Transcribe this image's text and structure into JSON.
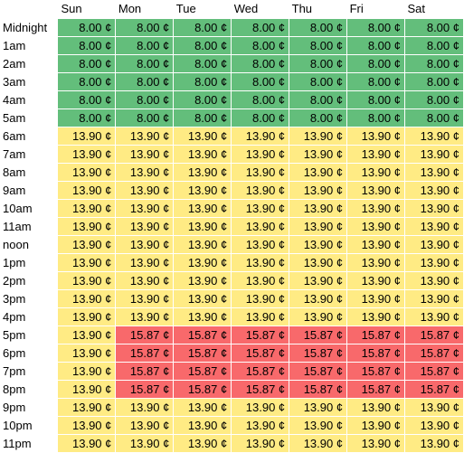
{
  "colors": {
    "off_peak": "#63be7b",
    "mid_peak": "#ffeb84",
    "on_peak": "#f8696b"
  },
  "days": [
    "Sun",
    "Mon",
    "Tue",
    "Wed",
    "Thu",
    "Fri",
    "Sat"
  ],
  "rows": [
    {
      "hour": "Midnight",
      "values": [
        "8.00 ¢",
        "8.00 ¢",
        "8.00 ¢",
        "8.00 ¢",
        "8.00 ¢",
        "8.00 ¢",
        "8.00 ¢"
      ],
      "tiers": [
        "off",
        "off",
        "off",
        "off",
        "off",
        "off",
        "off"
      ]
    },
    {
      "hour": "1am",
      "values": [
        "8.00 ¢",
        "8.00 ¢",
        "8.00 ¢",
        "8.00 ¢",
        "8.00 ¢",
        "8.00 ¢",
        "8.00 ¢"
      ],
      "tiers": [
        "off",
        "off",
        "off",
        "off",
        "off",
        "off",
        "off"
      ]
    },
    {
      "hour": "2am",
      "values": [
        "8.00 ¢",
        "8.00 ¢",
        "8.00 ¢",
        "8.00 ¢",
        "8.00 ¢",
        "8.00 ¢",
        "8.00 ¢"
      ],
      "tiers": [
        "off",
        "off",
        "off",
        "off",
        "off",
        "off",
        "off"
      ]
    },
    {
      "hour": "3am",
      "values": [
        "8.00 ¢",
        "8.00 ¢",
        "8.00 ¢",
        "8.00 ¢",
        "8.00 ¢",
        "8.00 ¢",
        "8.00 ¢"
      ],
      "tiers": [
        "off",
        "off",
        "off",
        "off",
        "off",
        "off",
        "off"
      ]
    },
    {
      "hour": "4am",
      "values": [
        "8.00 ¢",
        "8.00 ¢",
        "8.00 ¢",
        "8.00 ¢",
        "8.00 ¢",
        "8.00 ¢",
        "8.00 ¢"
      ],
      "tiers": [
        "off",
        "off",
        "off",
        "off",
        "off",
        "off",
        "off"
      ]
    },
    {
      "hour": "5am",
      "values": [
        "8.00 ¢",
        "8.00 ¢",
        "8.00 ¢",
        "8.00 ¢",
        "8.00 ¢",
        "8.00 ¢",
        "8.00 ¢"
      ],
      "tiers": [
        "off",
        "off",
        "off",
        "off",
        "off",
        "off",
        "off"
      ]
    },
    {
      "hour": "6am",
      "values": [
        "13.90 ¢",
        "13.90 ¢",
        "13.90 ¢",
        "13.90 ¢",
        "13.90 ¢",
        "13.90 ¢",
        "13.90 ¢"
      ],
      "tiers": [
        "mid",
        "mid",
        "mid",
        "mid",
        "mid",
        "mid",
        "mid"
      ]
    },
    {
      "hour": "7am",
      "values": [
        "13.90 ¢",
        "13.90 ¢",
        "13.90 ¢",
        "13.90 ¢",
        "13.90 ¢",
        "13.90 ¢",
        "13.90 ¢"
      ],
      "tiers": [
        "mid",
        "mid",
        "mid",
        "mid",
        "mid",
        "mid",
        "mid"
      ]
    },
    {
      "hour": "8am",
      "values": [
        "13.90 ¢",
        "13.90 ¢",
        "13.90 ¢",
        "13.90 ¢",
        "13.90 ¢",
        "13.90 ¢",
        "13.90 ¢"
      ],
      "tiers": [
        "mid",
        "mid",
        "mid",
        "mid",
        "mid",
        "mid",
        "mid"
      ]
    },
    {
      "hour": "9am",
      "values": [
        "13.90 ¢",
        "13.90 ¢",
        "13.90 ¢",
        "13.90 ¢",
        "13.90 ¢",
        "13.90 ¢",
        "13.90 ¢"
      ],
      "tiers": [
        "mid",
        "mid",
        "mid",
        "mid",
        "mid",
        "mid",
        "mid"
      ]
    },
    {
      "hour": "10am",
      "values": [
        "13.90 ¢",
        "13.90 ¢",
        "13.90 ¢",
        "13.90 ¢",
        "13.90 ¢",
        "13.90 ¢",
        "13.90 ¢"
      ],
      "tiers": [
        "mid",
        "mid",
        "mid",
        "mid",
        "mid",
        "mid",
        "mid"
      ]
    },
    {
      "hour": "11am",
      "values": [
        "13.90 ¢",
        "13.90 ¢",
        "13.90 ¢",
        "13.90 ¢",
        "13.90 ¢",
        "13.90 ¢",
        "13.90 ¢"
      ],
      "tiers": [
        "mid",
        "mid",
        "mid",
        "mid",
        "mid",
        "mid",
        "mid"
      ]
    },
    {
      "hour": "noon",
      "values": [
        "13.90 ¢",
        "13.90 ¢",
        "13.90 ¢",
        "13.90 ¢",
        "13.90 ¢",
        "13.90 ¢",
        "13.90 ¢"
      ],
      "tiers": [
        "mid",
        "mid",
        "mid",
        "mid",
        "mid",
        "mid",
        "mid"
      ]
    },
    {
      "hour": "1pm",
      "values": [
        "13.90 ¢",
        "13.90 ¢",
        "13.90 ¢",
        "13.90 ¢",
        "13.90 ¢",
        "13.90 ¢",
        "13.90 ¢"
      ],
      "tiers": [
        "mid",
        "mid",
        "mid",
        "mid",
        "mid",
        "mid",
        "mid"
      ]
    },
    {
      "hour": "2pm",
      "values": [
        "13.90 ¢",
        "13.90 ¢",
        "13.90 ¢",
        "13.90 ¢",
        "13.90 ¢",
        "13.90 ¢",
        "13.90 ¢"
      ],
      "tiers": [
        "mid",
        "mid",
        "mid",
        "mid",
        "mid",
        "mid",
        "mid"
      ]
    },
    {
      "hour": "3pm",
      "values": [
        "13.90 ¢",
        "13.90 ¢",
        "13.90 ¢",
        "13.90 ¢",
        "13.90 ¢",
        "13.90 ¢",
        "13.90 ¢"
      ],
      "tiers": [
        "mid",
        "mid",
        "mid",
        "mid",
        "mid",
        "mid",
        "mid"
      ]
    },
    {
      "hour": "4pm",
      "values": [
        "13.90 ¢",
        "13.90 ¢",
        "13.90 ¢",
        "13.90 ¢",
        "13.90 ¢",
        "13.90 ¢",
        "13.90 ¢"
      ],
      "tiers": [
        "mid",
        "mid",
        "mid",
        "mid",
        "mid",
        "mid",
        "mid"
      ]
    },
    {
      "hour": "5pm",
      "values": [
        "13.90 ¢",
        "15.87 ¢",
        "15.87 ¢",
        "15.87 ¢",
        "15.87 ¢",
        "15.87 ¢",
        "15.87 ¢"
      ],
      "tiers": [
        "mid",
        "on",
        "on",
        "on",
        "on",
        "on",
        "on"
      ]
    },
    {
      "hour": "6pm",
      "values": [
        "13.90 ¢",
        "15.87 ¢",
        "15.87 ¢",
        "15.87 ¢",
        "15.87 ¢",
        "15.87 ¢",
        "15.87 ¢"
      ],
      "tiers": [
        "mid",
        "on",
        "on",
        "on",
        "on",
        "on",
        "on"
      ]
    },
    {
      "hour": "7pm",
      "values": [
        "13.90 ¢",
        "15.87 ¢",
        "15.87 ¢",
        "15.87 ¢",
        "15.87 ¢",
        "15.87 ¢",
        "15.87 ¢"
      ],
      "tiers": [
        "mid",
        "on",
        "on",
        "on",
        "on",
        "on",
        "on"
      ]
    },
    {
      "hour": "8pm",
      "values": [
        "13.90 ¢",
        "15.87 ¢",
        "15.87 ¢",
        "15.87 ¢",
        "15.87 ¢",
        "15.87 ¢",
        "15.87 ¢"
      ],
      "tiers": [
        "mid",
        "on",
        "on",
        "on",
        "on",
        "on",
        "on"
      ]
    },
    {
      "hour": "9pm",
      "values": [
        "13.90 ¢",
        "13.90 ¢",
        "13.90 ¢",
        "13.90 ¢",
        "13.90 ¢",
        "13.90 ¢",
        "13.90 ¢"
      ],
      "tiers": [
        "mid",
        "mid",
        "mid",
        "mid",
        "mid",
        "mid",
        "mid"
      ]
    },
    {
      "hour": "10pm",
      "values": [
        "13.90 ¢",
        "13.90 ¢",
        "13.90 ¢",
        "13.90 ¢",
        "13.90 ¢",
        "13.90 ¢",
        "13.90 ¢"
      ],
      "tiers": [
        "mid",
        "mid",
        "mid",
        "mid",
        "mid",
        "mid",
        "mid"
      ]
    },
    {
      "hour": "11pm",
      "values": [
        "13.90 ¢",
        "13.90 ¢",
        "13.90 ¢",
        "13.90 ¢",
        "13.90 ¢",
        "13.90 ¢",
        "13.90 ¢"
      ],
      "tiers": [
        "mid",
        "mid",
        "mid",
        "mid",
        "mid",
        "mid",
        "mid"
      ]
    }
  ]
}
